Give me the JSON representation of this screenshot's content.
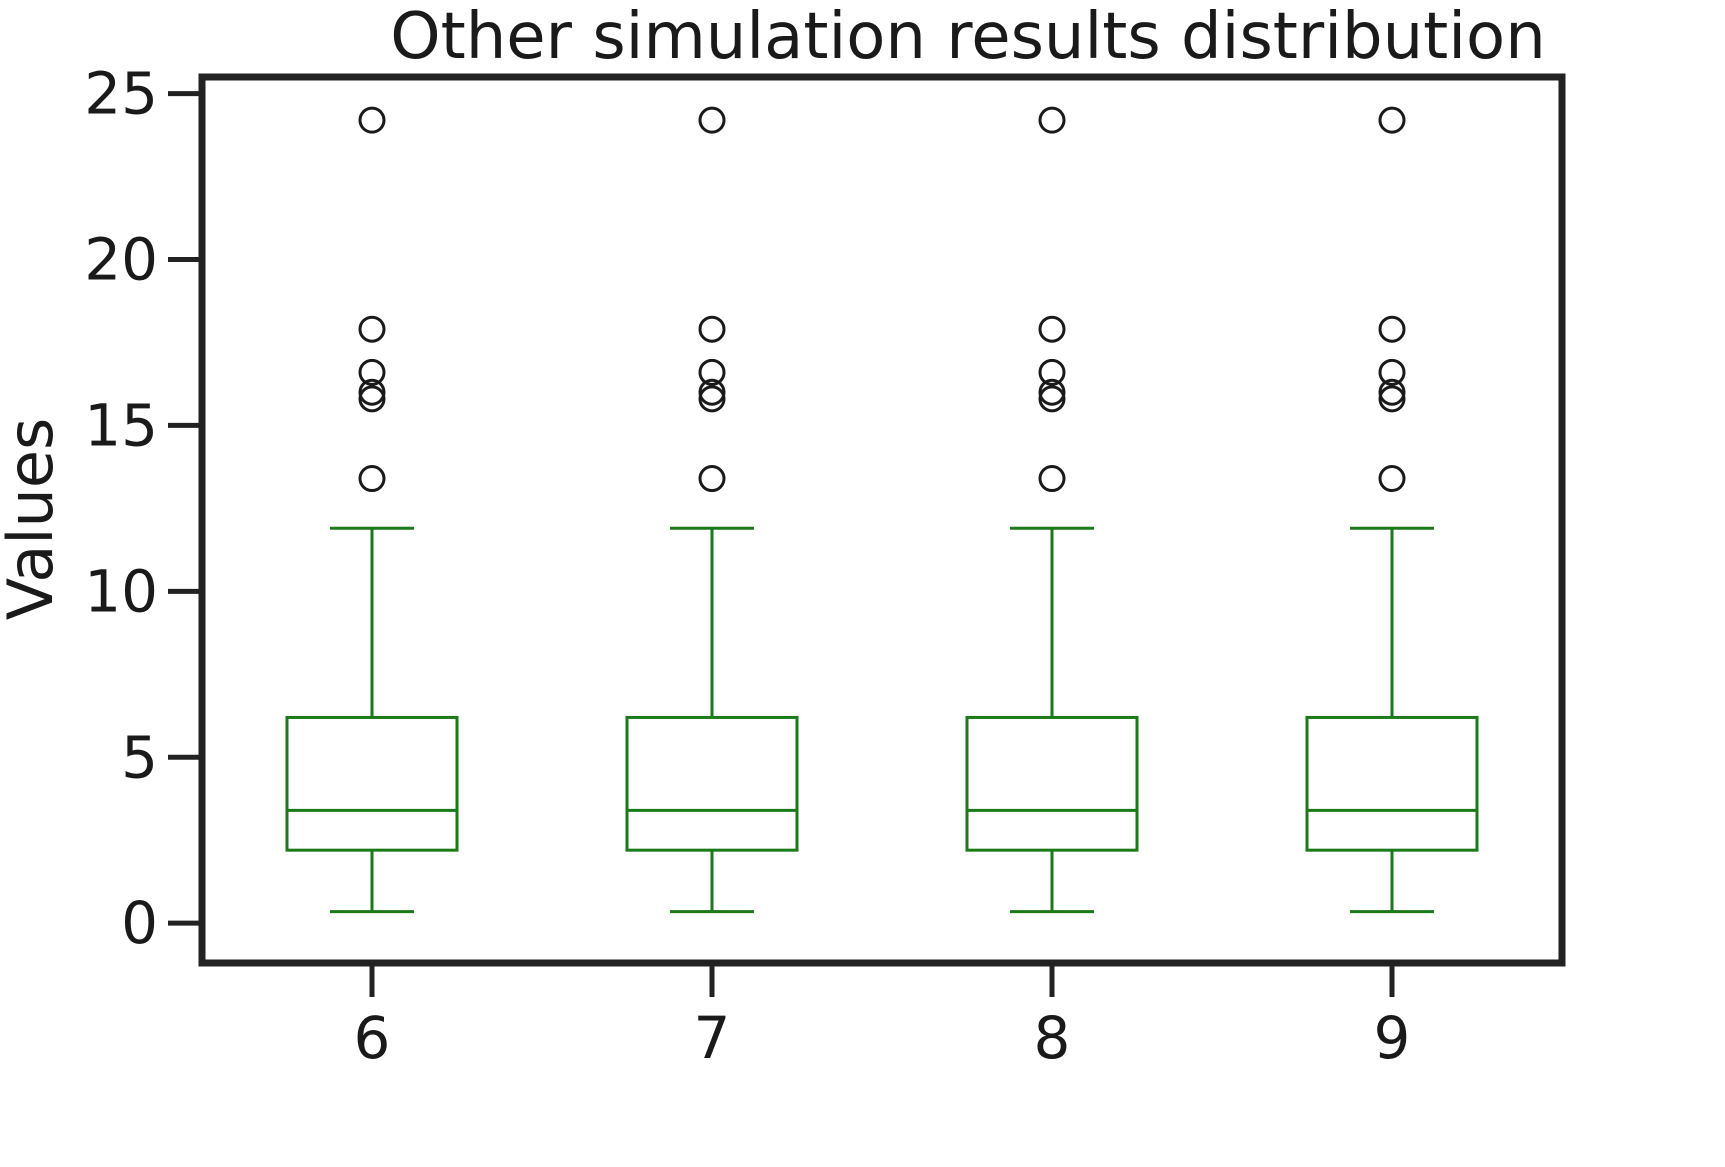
{
  "chart_data": {
    "type": "boxplot",
    "title": "Other simulation results distribution",
    "xlabel": "",
    "ylabel": "Values",
    "ylim": [
      -1.2,
      25.5
    ],
    "yticks": [
      0,
      5,
      10,
      15,
      20,
      25
    ],
    "categories": [
      "6",
      "7",
      "8",
      "9"
    ],
    "grid": false,
    "colors": {
      "box": "#1a7a1a",
      "outlier": "#1a1a1a",
      "frame": "#222222"
    },
    "boxes": [
      {
        "category": "6",
        "whisker_low": 0.35,
        "q1": 2.2,
        "median": 3.4,
        "q3": 6.2,
        "whisker_high": 11.9,
        "outliers": [
          13.4,
          15.8,
          16.0,
          16.6,
          17.9,
          24.2
        ]
      },
      {
        "category": "7",
        "whisker_low": 0.35,
        "q1": 2.2,
        "median": 3.4,
        "q3": 6.2,
        "whisker_high": 11.9,
        "outliers": [
          13.4,
          15.8,
          16.0,
          16.6,
          17.9,
          24.2
        ]
      },
      {
        "category": "8",
        "whisker_low": 0.35,
        "q1": 2.2,
        "median": 3.4,
        "q3": 6.2,
        "whisker_high": 11.9,
        "outliers": [
          13.4,
          15.8,
          16.0,
          16.6,
          17.9,
          24.2
        ]
      },
      {
        "category": "9",
        "whisker_low": 0.35,
        "q1": 2.2,
        "median": 3.4,
        "q3": 6.2,
        "whisker_high": 11.9,
        "outliers": [
          13.4,
          15.8,
          16.0,
          16.6,
          17.9,
          24.2
        ]
      }
    ]
  }
}
